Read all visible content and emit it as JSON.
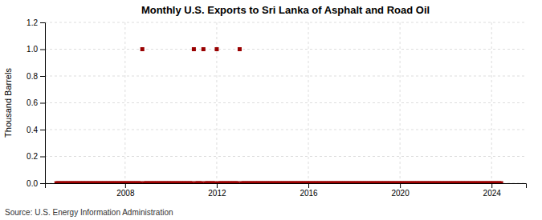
{
  "chart_data": {
    "type": "scatter",
    "title": "Monthly U.S. Exports to Sri Lanka of Asphalt and Road Oil",
    "ylabel": "Thousand Barrels",
    "annotations": [
      "Source: U.S. Energy Information Administration"
    ],
    "color": "#990000",
    "marker": "square",
    "grid": true,
    "xlim": [
      2004.5,
      2025.5
    ],
    "xticks": [
      2008,
      2012,
      2016,
      2020,
      2024
    ],
    "ylim": [
      0.0,
      1.2
    ],
    "yticks": [
      {
        "value": 0.0,
        "label": "0.0"
      },
      0.2,
      0.4,
      0.6,
      0.8,
      {
        "value": 1.0,
        "label": "1.0"
      },
      1.2
    ],
    "x": [
      2005.0,
      2005.083,
      2005.167,
      2005.25,
      2005.333,
      2005.417,
      2005.5,
      2005.583,
      2005.667,
      2005.75,
      2005.833,
      2005.917,
      2006.0,
      2006.083,
      2006.167,
      2006.25,
      2006.333,
      2006.417,
      2006.5,
      2006.583,
      2006.667,
      2006.75,
      2006.833,
      2006.917,
      2007.0,
      2007.083,
      2007.167,
      2007.25,
      2007.333,
      2007.417,
      2007.5,
      2007.583,
      2007.667,
      2007.75,
      2007.833,
      2007.917,
      2008.0,
      2008.083,
      2008.167,
      2008.25,
      2008.333,
      2008.417,
      2008.5,
      2008.583,
      2008.667,
      2008.75,
      2008.833,
      2008.917,
      2009.0,
      2009.083,
      2009.167,
      2009.25,
      2009.333,
      2009.417,
      2009.5,
      2009.583,
      2009.667,
      2009.75,
      2009.833,
      2009.917,
      2010.0,
      2010.083,
      2010.167,
      2010.25,
      2010.333,
      2010.417,
      2010.5,
      2010.583,
      2010.667,
      2010.75,
      2010.833,
      2010.917,
      2011.0,
      2011.083,
      2011.167,
      2011.25,
      2011.333,
      2011.417,
      2011.5,
      2011.583,
      2011.667,
      2011.75,
      2011.833,
      2011.917,
      2012.0,
      2012.083,
      2012.167,
      2012.25,
      2012.333,
      2012.417,
      2012.5,
      2012.583,
      2012.667,
      2012.75,
      2012.833,
      2012.917,
      2013.0,
      2013.083,
      2013.167,
      2013.25,
      2013.333,
      2013.417,
      2013.5,
      2013.583,
      2013.667,
      2013.75,
      2013.833,
      2013.917,
      2014.0,
      2014.083,
      2014.167,
      2014.25,
      2014.333,
      2014.417,
      2014.5,
      2014.583,
      2014.667,
      2014.75,
      2014.833,
      2014.917,
      2015.0,
      2015.083,
      2015.167,
      2015.25,
      2015.333,
      2015.417,
      2015.5,
      2015.583,
      2015.667,
      2015.75,
      2015.833,
      2015.917,
      2016.0,
      2016.083,
      2016.167,
      2016.25,
      2016.333,
      2016.417,
      2016.5,
      2016.583,
      2016.667,
      2016.75,
      2016.833,
      2016.917,
      2017.0,
      2017.083,
      2017.167,
      2017.25,
      2017.333,
      2017.417,
      2017.5,
      2017.583,
      2017.667,
      2017.75,
      2017.833,
      2017.917,
      2018.0,
      2018.083,
      2018.167,
      2018.25,
      2018.333,
      2018.417,
      2018.5,
      2018.583,
      2018.667,
      2018.75,
      2018.833,
      2018.917,
      2019.0,
      2019.083,
      2019.167,
      2019.25,
      2019.333,
      2019.417,
      2019.5,
      2019.583,
      2019.667,
      2019.75,
      2019.833,
      2019.917,
      2020.0,
      2020.083,
      2020.167,
      2020.25,
      2020.333,
      2020.417,
      2020.5,
      2020.583,
      2020.667,
      2020.75,
      2020.833,
      2020.917,
      2021.0,
      2021.083,
      2021.167,
      2021.25,
      2021.333,
      2021.417,
      2021.5,
      2021.583,
      2021.667,
      2021.75,
      2021.833,
      2021.917,
      2022.0,
      2022.083,
      2022.167,
      2022.25,
      2022.333,
      2022.417,
      2022.5,
      2022.583,
      2022.667,
      2022.75,
      2022.833,
      2022.917,
      2023.0,
      2023.083,
      2023.167,
      2023.25,
      2023.333,
      2023.417,
      2023.5,
      2023.583,
      2023.667,
      2023.75,
      2023.833,
      2023.917,
      2024.0,
      2024.083,
      2024.167,
      2024.25,
      2024.333,
      2024.417
    ],
    "values": [
      0,
      0,
      0,
      0,
      0,
      0,
      0,
      0,
      0,
      0,
      0,
      0,
      0,
      0,
      0,
      0,
      0,
      0,
      0,
      0,
      0,
      0,
      0,
      0,
      0,
      0,
      0,
      0,
      0,
      0,
      0,
      0,
      0,
      0,
      0,
      0,
      0,
      0,
      0,
      0,
      0,
      0,
      0,
      0,
      0,
      1.0,
      0,
      0,
      0,
      0,
      0,
      0,
      0,
      0,
      0,
      0,
      0,
      0,
      0,
      0,
      0,
      0,
      0,
      0,
      0,
      0,
      0,
      0,
      0,
      0,
      0,
      0,
      1.0,
      0,
      0,
      0,
      0,
      1.0,
      0,
      0,
      0,
      0,
      0,
      0,
      1.0,
      0,
      0,
      0,
      0,
      0,
      0,
      0,
      0,
      0,
      0,
      0,
      1.0,
      0,
      0,
      0,
      0,
      0,
      0,
      0,
      0,
      0,
      0,
      0,
      0,
      0,
      0,
      0,
      0,
      0,
      0,
      0,
      0,
      0,
      0,
      0,
      0,
      0,
      0,
      0,
      0,
      0,
      0,
      0,
      0,
      0,
      0,
      0,
      0,
      0,
      0,
      0,
      0,
      0,
      0,
      0,
      0,
      0,
      0,
      0,
      0,
      0,
      0,
      0,
      0,
      0,
      0,
      0,
      0,
      0,
      0,
      0,
      0,
      0,
      0,
      0,
      0,
      0,
      0,
      0,
      0,
      0,
      0,
      0,
      0,
      0,
      0,
      0,
      0,
      0,
      0,
      0,
      0,
      0,
      0,
      0,
      0,
      0,
      0,
      0,
      0,
      0,
      0,
      0,
      0,
      0,
      0,
      0,
      0,
      0,
      0,
      0,
      0,
      0,
      0,
      0,
      0,
      0,
      0,
      0,
      0,
      0,
      0,
      0,
      0,
      0,
      0,
      0,
      0,
      0,
      0,
      0,
      0,
      0,
      0,
      0,
      0,
      0,
      0,
      0,
      0,
      0,
      0,
      0,
      0,
      0,
      0,
      0,
      0,
      0
    ]
  }
}
